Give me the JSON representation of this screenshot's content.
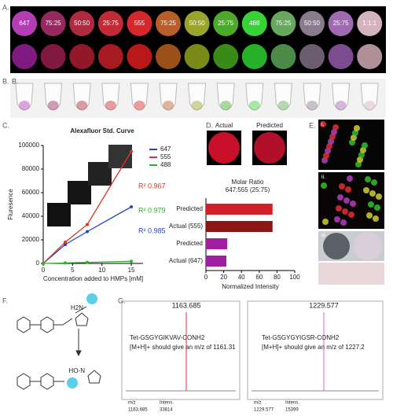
{
  "panels": {
    "A": {
      "label": "A.",
      "circle_labels": [
        "647",
        "75:25",
        "50:50",
        "25:75",
        "555",
        "75:25",
        "50:50",
        "25:75",
        "488",
        "75:25",
        "50:50",
        "25:75",
        "1:1:1"
      ]
    },
    "B": {
      "label": "B."
    },
    "C": {
      "label": "C."
    },
    "D": {
      "label": "D.",
      "image_labels": [
        "Actual",
        "Predicted"
      ]
    },
    "E": {
      "label": "E.",
      "image_labels": [
        "i.",
        "ii.",
        "iii"
      ]
    },
    "F": {
      "label": "F.",
      "atom_labels": [
        "H2N",
        "HO-N"
      ]
    },
    "G": {
      "label": "G.",
      "spectra": [
        {
          "peak": "1163.685",
          "peptide": "Tet-GSGYGIKVAV-CONH2",
          "note": "[M+H]+ should give an m/z of 1161.31",
          "mz_header": "m/z",
          "intens_header": "Intens.",
          "mz": "1163.685",
          "intens": "33814"
        },
        {
          "peak": "1229.577",
          "peptide": "Tet-GSGYGYIGSR-CONH2",
          "note": "[M+H]+ should give an m/z of 1227.2",
          "mz_header": "m/z",
          "intens_header": "Intens.",
          "mz": "1229.577",
          "intens": "15399"
        }
      ]
    }
  },
  "chart_data": [
    {
      "type": "scatter",
      "title": "Alexafluor Std. Curve",
      "x_label": "Concentration added to HMPs [mM]",
      "y_label": "Fluresence",
      "xlim": [
        0,
        17
      ],
      "ylim": [
        0,
        100000
      ],
      "xticks": [
        0,
        5,
        10,
        15
      ],
      "yticks": [
        0,
        20000,
        40000,
        60000,
        80000,
        100000
      ],
      "series": [
        {
          "name": "647",
          "color": "#2346c8",
          "x": [
            0,
            3.75,
            7.5,
            15
          ],
          "values": [
            0,
            16000,
            27000,
            48000
          ]
        },
        {
          "name": "555",
          "color": "#e4321e",
          "x": [
            0,
            3.75,
            7.5,
            15
          ],
          "values": [
            0,
            18000,
            33000,
            95000
          ]
        },
        {
          "name": "488",
          "color": "#28b428",
          "x": [
            0,
            3.75,
            7.5,
            15
          ],
          "values": [
            0,
            400,
            900,
            1800
          ]
        }
      ],
      "annotations": [
        {
          "text": "R² 0.967",
          "color": "#e4321e"
        },
        {
          "text": "R² 0.979",
          "color": "#28b428"
        },
        {
          "text": "R² 0.985",
          "color": "#2346c8"
        }
      ]
    },
    {
      "type": "hbar",
      "title": "Molar Ratio",
      "subtitle": "647:555 (25:75)",
      "x_label": "Normalized Intensity",
      "categories": [
        "Predicted",
        "Actual (555)",
        "Predicted",
        "Actual (647)"
      ],
      "values": [
        75,
        75,
        24,
        23
      ],
      "colors": [
        "#d2202a",
        "#8b1616",
        "#a01ea0",
        "#a01ea0"
      ],
      "xlim": [
        0,
        100
      ],
      "xticks": [
        0,
        20,
        40,
        60,
        80,
        100
      ]
    }
  ]
}
